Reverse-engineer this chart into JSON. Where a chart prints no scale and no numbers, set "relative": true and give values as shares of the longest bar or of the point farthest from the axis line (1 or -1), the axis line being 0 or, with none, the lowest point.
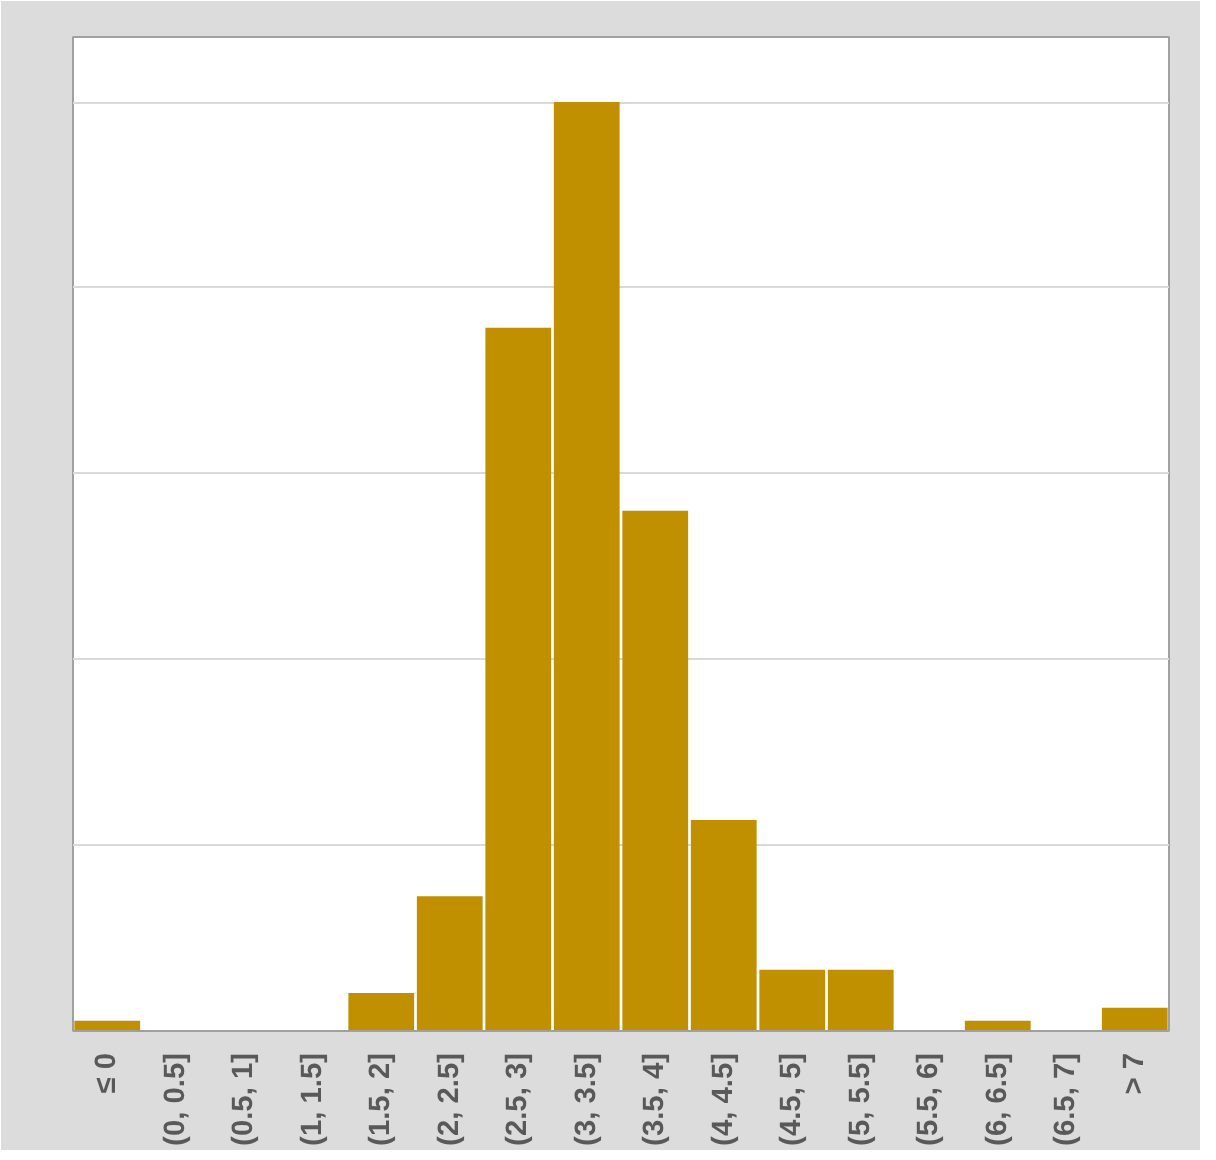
{
  "chart_data": {
    "type": "bar",
    "relative": true,
    "grid": "y",
    "color": "#c09000",
    "categories": [
      "≤ 0",
      "(0, 0.5]",
      "(0.5, 1]",
      "(1, 1.5]",
      "(1.5, 2]",
      "(2, 2.5]",
      "(2.5, 3]",
      "(3, 3.5]",
      "(3.5, 4]",
      "(4, 4.5]",
      "(4.5, 5]",
      "(5, 5.5]",
      "(5.5, 6]",
      "(6, 6.5]",
      "(6.5, 7]",
      "> 7"
    ],
    "values": [
      0.011,
      0,
      0,
      0,
      0.041,
      0.145,
      0.757,
      1,
      0.56,
      0.227,
      0.066,
      0.066,
      0,
      0.011,
      0,
      0.025
    ]
  }
}
